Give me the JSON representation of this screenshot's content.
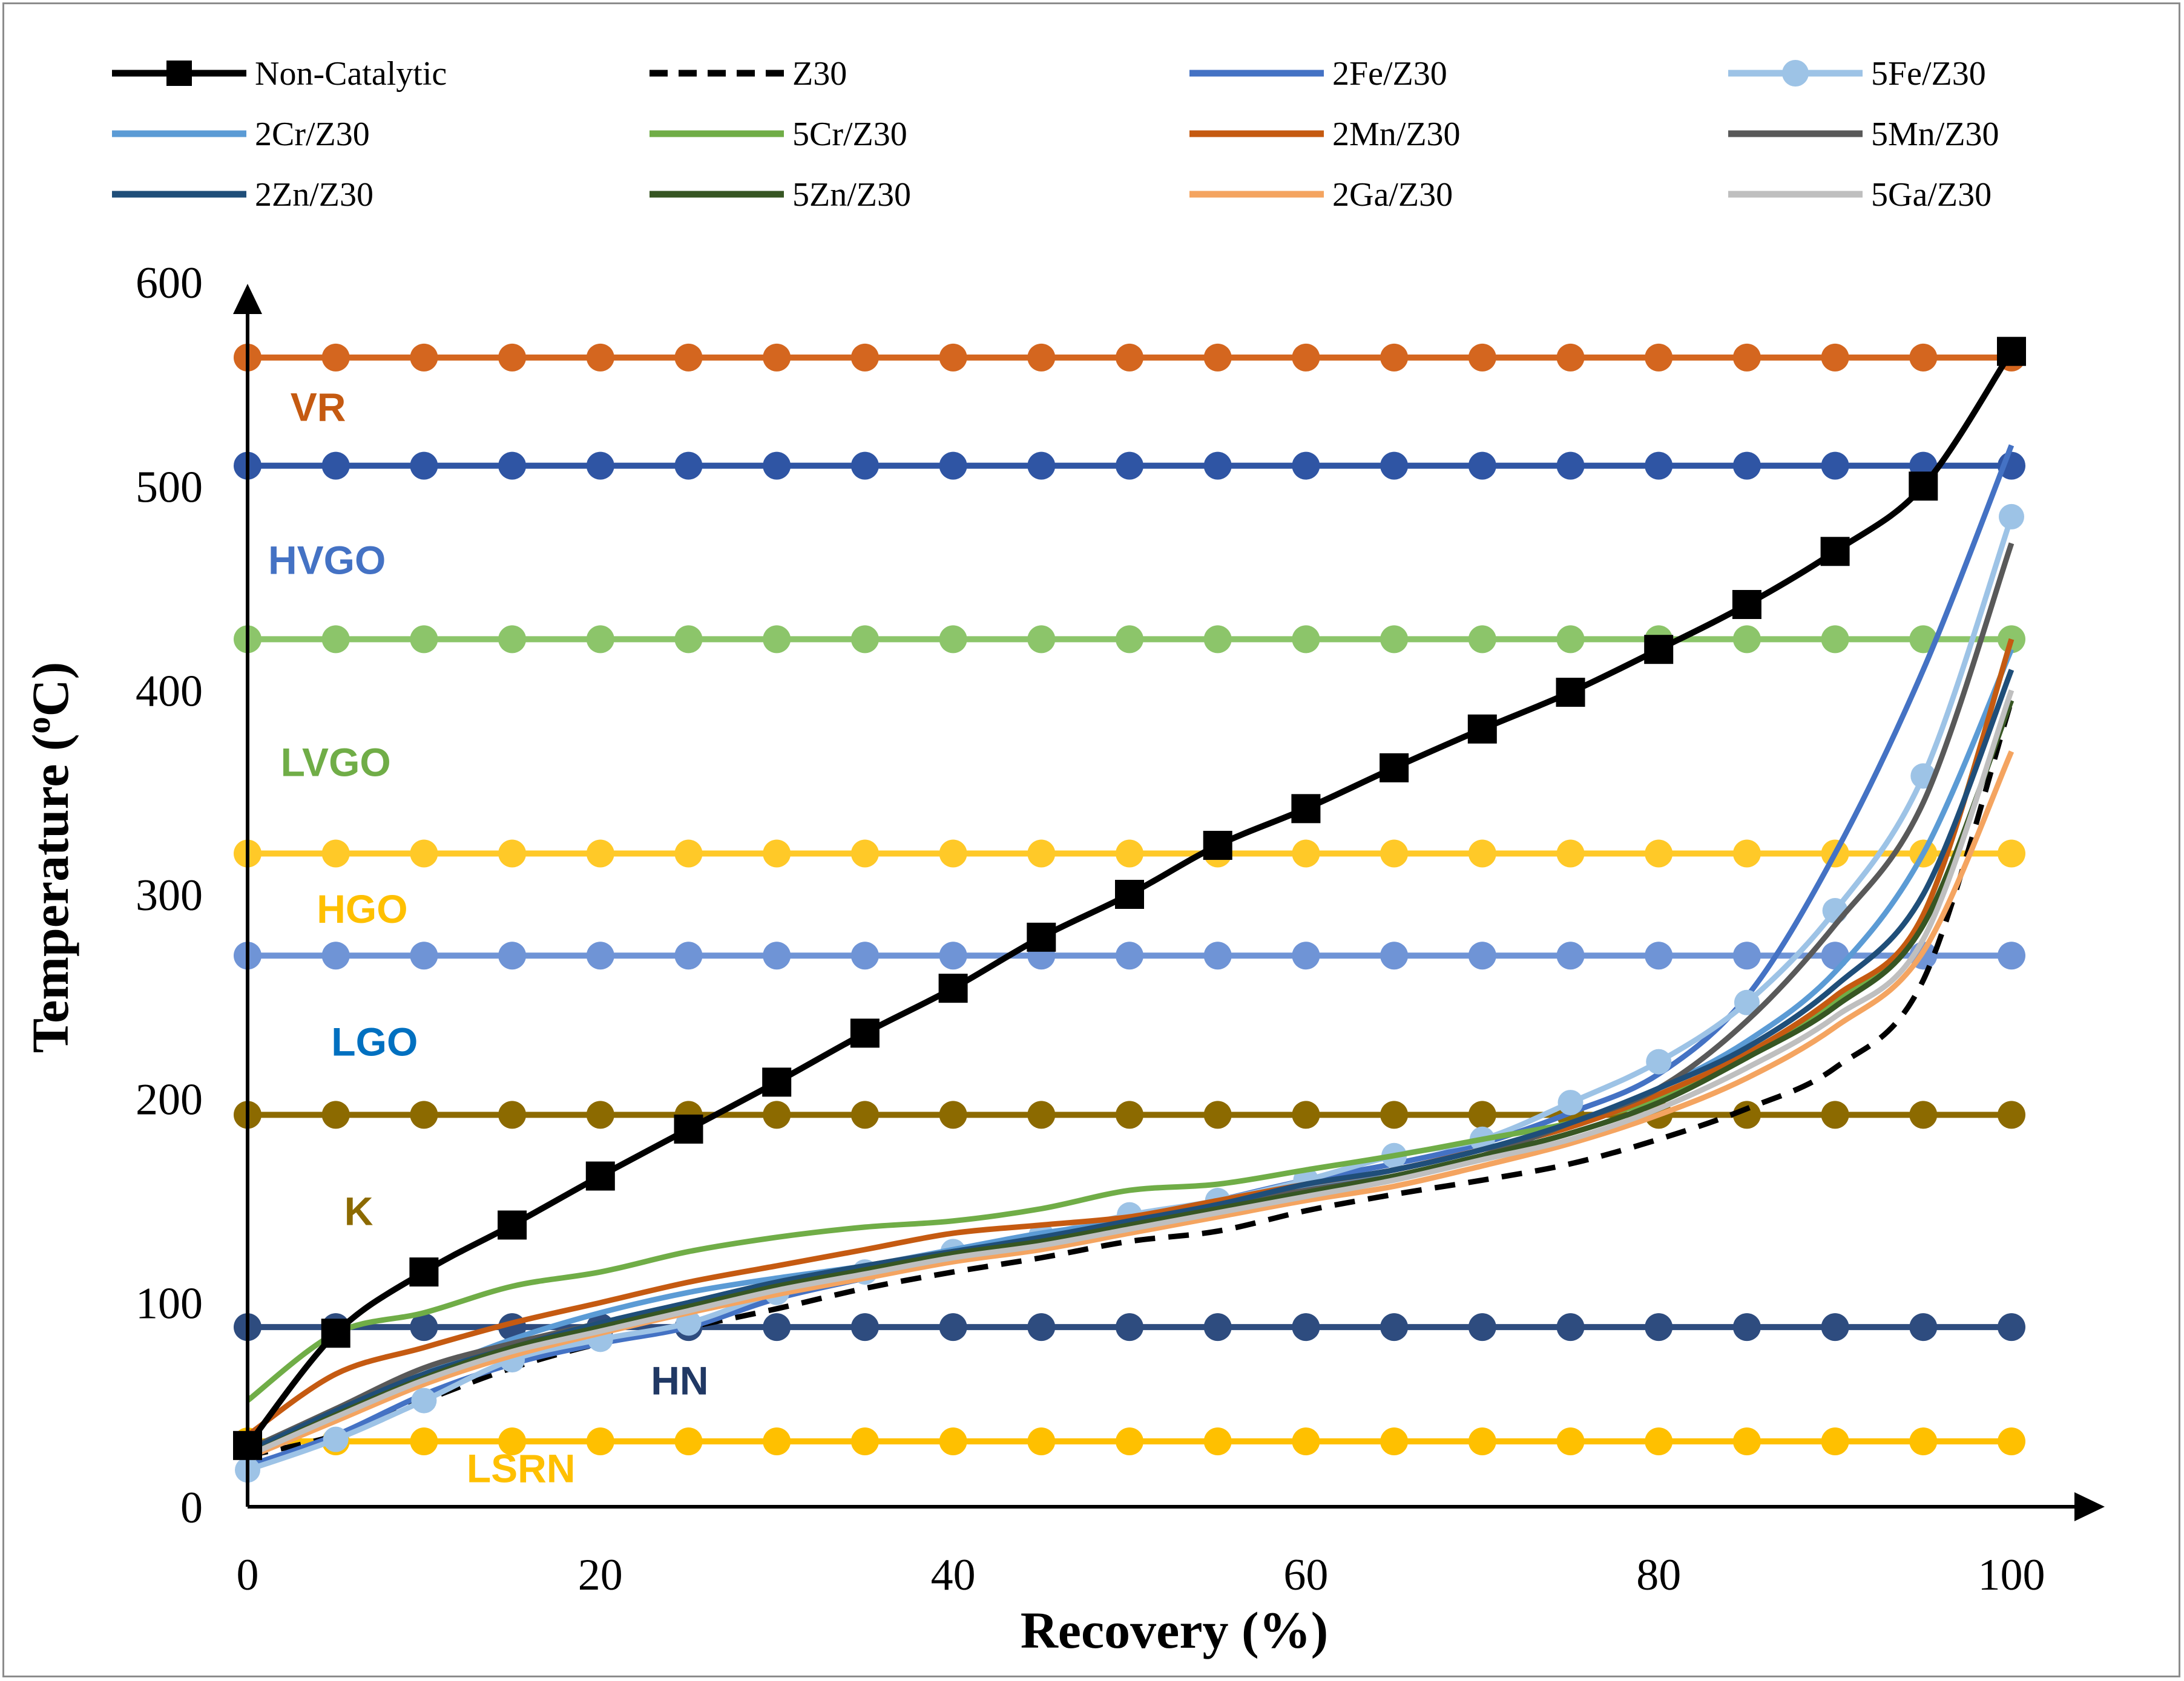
{
  "chart_data": {
    "type": "line",
    "title": "",
    "xlabel": "Recovery (%)",
    "ylabel_main": "Temperature (",
    "ylabel_sup": "o",
    "ylabel_end": "C)",
    "xlim": [
      0,
      100
    ],
    "ylim": [
      0,
      600
    ],
    "x_ticks": [
      "0",
      "20",
      "40",
      "60",
      "80",
      "100"
    ],
    "y_ticks": [
      "0",
      "100",
      "200",
      "300",
      "400",
      "500",
      "600"
    ],
    "grid": false,
    "legend": "top",
    "series": [
      {
        "name": "Non-Catalytic",
        "color": "#000000",
        "style": "solid",
        "marker": "square",
        "x": [
          0,
          5,
          10,
          15,
          20,
          25,
          30,
          35,
          40,
          45,
          50,
          55,
          60,
          65,
          70,
          75,
          80,
          85,
          90,
          95,
          100
        ],
        "y": [
          30,
          85,
          115,
          138,
          162,
          185,
          208,
          232,
          254,
          279,
          300,
          324,
          342,
          362,
          381,
          399,
          420,
          442,
          468,
          500,
          566
        ]
      },
      {
        "name": "Z30",
        "color": "#000000",
        "style": "dashed",
        "marker": "none",
        "x": [
          0,
          5,
          10,
          15,
          20,
          25,
          30,
          35,
          40,
          45,
          50,
          55,
          60,
          65,
          70,
          75,
          80,
          85,
          90,
          95,
          100
        ],
        "y": [
          25,
          35,
          52,
          68,
          80,
          88,
          97,
          107,
          115,
          122,
          130,
          135,
          145,
          153,
          160,
          168,
          180,
          195,
          215,
          258,
          395
        ]
      },
      {
        "name": "2Fe/Z30",
        "color": "#4472C4",
        "style": "solid",
        "marker": "none",
        "x": [
          0,
          5,
          10,
          15,
          20,
          25,
          30,
          35,
          40,
          45,
          50,
          55,
          60,
          65,
          70,
          75,
          80,
          85,
          90,
          95,
          100
        ],
        "y": [
          20,
          35,
          55,
          70,
          80,
          88,
          102,
          112,
          122,
          132,
          140,
          150,
          160,
          168,
          178,
          193,
          212,
          250,
          320,
          410,
          520
        ]
      },
      {
        "name": "5Fe/Z30",
        "color": "#9DC3E6",
        "style": "solid",
        "marker": "circle",
        "x": [
          0,
          5,
          10,
          15,
          20,
          25,
          30,
          35,
          40,
          45,
          50,
          55,
          60,
          65,
          70,
          75,
          80,
          85,
          90,
          95,
          100
        ],
        "y": [
          18,
          33,
          52,
          72,
          82,
          90,
          105,
          115,
          125,
          133,
          143,
          150,
          160,
          172,
          180,
          198,
          218,
          247,
          292,
          358,
          485
        ]
      },
      {
        "name": "2Cr/Z30",
        "color": "#5B9BD5",
        "style": "solid",
        "marker": "none",
        "x": [
          0,
          5,
          10,
          15,
          20,
          25,
          30,
          35,
          40,
          45,
          50,
          55,
          60,
          65,
          70,
          75,
          80,
          85,
          90,
          95,
          100
        ],
        "y": [
          28,
          45,
          65,
          82,
          95,
          105,
          112,
          118,
          126,
          134,
          140,
          148,
          156,
          165,
          175,
          188,
          205,
          228,
          262,
          320,
          420
        ]
      },
      {
        "name": "5Cr/Z30",
        "color": "#70AD47",
        "style": "solid",
        "marker": "none",
        "x": [
          0,
          5,
          10,
          15,
          20,
          25,
          30,
          35,
          40,
          45,
          50,
          55,
          60,
          65,
          70,
          75,
          80,
          85,
          90,
          95,
          100
        ],
        "y": [
          52,
          85,
          95,
          108,
          115,
          125,
          132,
          137,
          140,
          146,
          155,
          158,
          165,
          172,
          180,
          188,
          200,
          220,
          248,
          290,
          425
        ]
      },
      {
        "name": "2Mn/Z30",
        "color": "#C55A11",
        "style": "solid",
        "marker": "none",
        "x": [
          0,
          5,
          10,
          15,
          20,
          25,
          30,
          35,
          40,
          45,
          50,
          55,
          60,
          65,
          70,
          75,
          80,
          85,
          90,
          95,
          100
        ],
        "y": [
          35,
          65,
          78,
          90,
          100,
          110,
          118,
          126,
          134,
          138,
          142,
          150,
          158,
          165,
          175,
          186,
          202,
          222,
          250,
          290,
          425
        ]
      },
      {
        "name": "5Mn/Z30",
        "color": "#595959",
        "style": "solid",
        "marker": "none",
        "x": [
          0,
          5,
          10,
          15,
          20,
          25,
          30,
          35,
          40,
          45,
          50,
          55,
          60,
          65,
          70,
          75,
          80,
          85,
          90,
          95,
          100
        ],
        "y": [
          28,
          48,
          68,
          80,
          90,
          100,
          110,
          118,
          125,
          130,
          138,
          148,
          155,
          162,
          172,
          188,
          205,
          238,
          285,
          345,
          472
        ]
      },
      {
        "name": "2Zn/Z30",
        "color": "#1F4E79",
        "style": "solid",
        "marker": "none",
        "x": [
          0,
          5,
          10,
          15,
          20,
          25,
          30,
          35,
          40,
          45,
          50,
          55,
          60,
          65,
          70,
          75,
          80,
          85,
          90,
          95,
          100
        ],
        "y": [
          27,
          47,
          65,
          78,
          90,
          100,
          110,
          118,
          125,
          132,
          140,
          148,
          158,
          165,
          175,
          188,
          205,
          225,
          255,
          300,
          410
        ]
      },
      {
        "name": "5Zn/Z30",
        "color": "#375623",
        "style": "solid",
        "marker": "none",
        "x": [
          0,
          5,
          10,
          15,
          20,
          25,
          30,
          35,
          40,
          45,
          50,
          55,
          60,
          65,
          70,
          75,
          80,
          85,
          90,
          95,
          100
        ],
        "y": [
          25,
          45,
          63,
          78,
          88,
          98,
          108,
          116,
          124,
          130,
          138,
          146,
          154,
          162,
          172,
          183,
          198,
          220,
          245,
          285,
          395
        ]
      },
      {
        "name": "2Ga/Z30",
        "color": "#F4A460",
        "style": "solid",
        "marker": "none",
        "x": [
          0,
          5,
          10,
          15,
          20,
          25,
          30,
          35,
          40,
          45,
          50,
          55,
          60,
          65,
          70,
          75,
          80,
          85,
          90,
          95,
          100
        ],
        "y": [
          24,
          42,
          60,
          74,
          85,
          95,
          104,
          112,
          120,
          126,
          134,
          142,
          150,
          157,
          167,
          178,
          192,
          210,
          235,
          272,
          370
        ]
      },
      {
        "name": "5Ga/Z30",
        "color": "#BFBFBF",
        "style": "solid",
        "marker": "none",
        "x": [
          0,
          5,
          10,
          15,
          20,
          25,
          30,
          35,
          40,
          45,
          50,
          55,
          60,
          65,
          70,
          75,
          80,
          85,
          90,
          95,
          100
        ],
        "y": [
          25,
          44,
          62,
          76,
          86,
          96,
          106,
          114,
          122,
          128,
          136,
          144,
          152,
          160,
          170,
          180,
          195,
          215,
          240,
          278,
          400
        ]
      }
    ],
    "reference_lines": [
      {
        "label": "VR",
        "value": 563,
        "color": "#D4661F",
        "label_color": "#C55A11",
        "label_x": 4,
        "label_y": 532
      },
      {
        "label": "HVGO",
        "value": 510,
        "color": "#2F55A4",
        "label_color": "#4472C4",
        "label_x": 4.5,
        "label_y": 457
      },
      {
        "label": "LVGO",
        "value": 425,
        "color": "#8CC56A",
        "label_color": "#70AD47",
        "label_x": 5,
        "label_y": 358
      },
      {
        "label": "HGO",
        "value": 320,
        "color": "#FFC928",
        "label_color": "#FFC000",
        "label_x": 6.5,
        "label_y": 286
      },
      {
        "label": "LGO",
        "value": 270,
        "color": "#6F94D6",
        "label_color": "#0070C0",
        "label_x": 7.2,
        "label_y": 221
      },
      {
        "label": "K",
        "value": 192,
        "color": "#8C6A00",
        "label_color": "#8C6A00",
        "label_x": 6.3,
        "label_y": 138
      },
      {
        "label": "HN",
        "value": 88,
        "color": "#2E4C7F",
        "label_color": "#203864",
        "label_x": 24.5,
        "label_y": 55
      },
      {
        "label": "LSRN",
        "value": 32,
        "color": "#FFC000",
        "label_color": "#FFC000",
        "label_x": 15.5,
        "label_y": 12
      }
    ]
  }
}
